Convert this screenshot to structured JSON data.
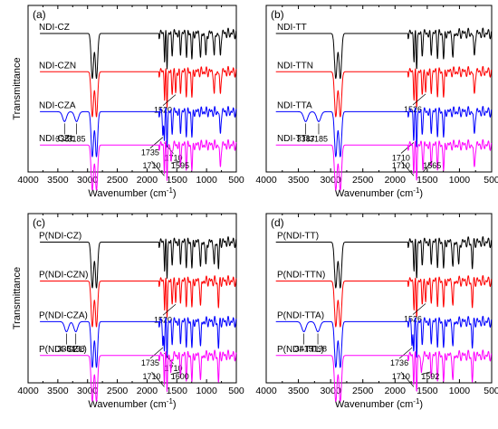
{
  "figure": {
    "chart_data": [
      {
        "type": "line",
        "panel": "(a)",
        "xlabel_prefix": "Wavenumber (cm",
        "xlabel_sup": "-1",
        "xlabel_suffix": ")",
        "ylabel": "Transmittance",
        "xlim": [
          4000,
          500
        ],
        "x_reversed": true,
        "xticks": [
          "4000",
          "3500",
          "3000",
          "2500",
          "2000",
          "1500",
          "1000",
          "500"
        ],
        "grid": false,
        "series": [
          {
            "name": "NDI-CZ",
            "color": "#000000",
            "peaks": [
              2920,
              2850,
              1705,
              1665,
              1580,
              1440,
              1335,
              1245,
              1100,
              1010,
              870,
              770
            ]
          },
          {
            "name": "NDI-CZN",
            "color": "#ff0000",
            "peaks": [
              2920,
              2850,
              1705,
              1665,
              1580,
              1520,
              1440,
              1340,
              1245,
              870,
              770
            ]
          },
          {
            "name": "NDI-CZA",
            "color": "#0000ff",
            "peaks": [
              3387,
              3185,
              2920,
              2850,
              1735,
              1710,
              1665,
              1580,
              1440,
              1340,
              1245,
              770
            ]
          },
          {
            "name": "NDI-CZL",
            "color": "#ff00ff",
            "peaks": [
              2920,
              2850,
              1710,
              1665,
              1595,
              1440,
              1340,
              1245,
              770
            ]
          }
        ],
        "annotations": [
          {
            "text": "1520",
            "series": "NDI-CZN",
            "x": 1520
          },
          {
            "text": "3387",
            "series": "NDI-CZA",
            "x": 3387
          },
          {
            "text": "3185",
            "series": "NDI-CZA",
            "x": 3185
          },
          {
            "text": "1735",
            "series": "NDI-CZA",
            "x": 1735
          },
          {
            "text": "1710",
            "series": "NDI-CZA",
            "x": 1710
          },
          {
            "text": "1710",
            "series": "NDI-CZL",
            "x": 1710
          },
          {
            "text": "1595",
            "series": "NDI-CZL",
            "x": 1595
          }
        ]
      },
      {
        "type": "line",
        "panel": "(b)",
        "xlabel_prefix": "Wavenumber (cm",
        "xlabel_sup": "-1",
        "xlabel_suffix": ")",
        "ylabel": "",
        "xlim": [
          4000,
          500
        ],
        "x_reversed": true,
        "xticks": [
          "4000",
          "3500",
          "3000",
          "2500",
          "2000",
          "1500",
          "1000",
          "500"
        ],
        "grid": false,
        "series": [
          {
            "name": "NDI-TT",
            "color": "#000000",
            "peaks": [
              2920,
              2850,
              1705,
              1665,
              1580,
              1440,
              1340,
              1245,
              1100,
              770
            ]
          },
          {
            "name": "NDI-TTN",
            "color": "#ff0000",
            "peaks": [
              2920,
              2850,
              1705,
              1665,
              1580,
              1526,
              1440,
              1340,
              1245,
              770
            ]
          },
          {
            "name": "NDI-TTA",
            "color": "#0000ff",
            "peaks": [
              3387,
              3185,
              2920,
              2850,
              1710,
              1665,
              1580,
              1440,
              1340,
              1245,
              770
            ]
          },
          {
            "name": "NDI-TTL",
            "color": "#ff00ff",
            "peaks": [
              2920,
              2850,
              1710,
              1665,
              1565,
              1440,
              1340,
              1245,
              770
            ]
          }
        ],
        "annotations": [
          {
            "text": "1526",
            "series": "NDI-TTN",
            "x": 1526
          },
          {
            "text": "3387",
            "series": "NDI-TTA",
            "x": 3387
          },
          {
            "text": "3185",
            "series": "NDI-TTA",
            "x": 3185
          },
          {
            "text": "1710",
            "series": "NDI-TTA",
            "x": 1710
          },
          {
            "text": "1710",
            "series": "NDI-TTL",
            "x": 1710
          },
          {
            "text": "1565",
            "series": "NDI-TTL",
            "x": 1565
          }
        ]
      },
      {
        "type": "line",
        "panel": "(c)",
        "xlabel_prefix": "Wavenumber (cm",
        "xlabel_sup": "-1",
        "xlabel_suffix": ")",
        "ylabel": "Transmittance",
        "xlim": [
          4000,
          500
        ],
        "x_reversed": true,
        "xticks": [
          "4000",
          "3500",
          "3000",
          "2500",
          "2000",
          "1500",
          "1000",
          "500"
        ],
        "grid": false,
        "series": [
          {
            "name": "P(NDI-CZ)",
            "color": "#000000",
            "peaks": [
              2920,
              2850,
              1705,
              1665,
              1580,
              1440,
              1340,
              1245,
              1100,
              1010,
              870,
              800
            ]
          },
          {
            "name": "P(NDI-CZN)",
            "color": "#ff0000",
            "peaks": [
              2920,
              2850,
              1705,
              1665,
              1580,
              1520,
              1440,
              1340,
              1245,
              1100,
              800
            ]
          },
          {
            "name": "P(NDI-CZA)",
            "color": "#0000ff",
            "peaks": [
              3354,
              3198,
              2920,
              2850,
              1735,
              1710,
              1665,
              1580,
              1440,
              1340,
              1245,
              1100,
              800
            ]
          },
          {
            "name": "P(NDI-CZL)",
            "color": "#ff00ff",
            "peaks": [
              2920,
              2850,
              1710,
              1665,
              1600,
              1440,
              1340,
              1245,
              1100,
              800
            ]
          }
        ],
        "annotations": [
          {
            "text": "1520",
            "series": "P(NDI-CZN)",
            "x": 1520
          },
          {
            "text": "3354",
            "series": "P(NDI-CZA)",
            "x": 3354
          },
          {
            "text": "3198",
            "series": "P(NDI-CZA)",
            "x": 3198
          },
          {
            "text": "1735",
            "series": "P(NDI-CZA)",
            "x": 1735
          },
          {
            "text": "1710",
            "series": "P(NDI-CZA)",
            "x": 1710
          },
          {
            "text": "1710",
            "series": "P(NDI-CZL)",
            "x": 1710
          },
          {
            "text": "1600",
            "series": "P(NDI-CZL)",
            "x": 1600
          }
        ]
      },
      {
        "type": "line",
        "panel": "(d)",
        "xlabel_prefix": "Wavenumber (cm",
        "xlabel_sup": "-1",
        "xlabel_suffix": ")",
        "ylabel": "",
        "xlim": [
          4000,
          500
        ],
        "x_reversed": true,
        "xticks": [
          "4000",
          "3500",
          "3000",
          "2500",
          "2000",
          "1500",
          "1000",
          "500"
        ],
        "grid": false,
        "series": [
          {
            "name": "P(NDI-TT)",
            "color": "#000000",
            "peaks": [
              2920,
              2850,
              1705,
              1665,
              1580,
              1440,
              1340,
              1245,
              1100,
              1010,
              800
            ]
          },
          {
            "name": "P(NDI-TTN)",
            "color": "#ff0000",
            "peaks": [
              2920,
              2850,
              1705,
              1665,
              1580,
              1526,
              1440,
              1340,
              1245,
              1100,
              800
            ]
          },
          {
            "name": "P(NDI-TTA)",
            "color": "#0000ff",
            "peaks": [
              3415,
              3198,
              2920,
              2850,
              1736,
              1710,
              1665,
              1580,
              1440,
              1340,
              1245,
              1100,
              800
            ]
          },
          {
            "name": "P(NDI-TTL)",
            "color": "#ff00ff",
            "peaks": [
              2920,
              2850,
              1710,
              1665,
              1592,
              1440,
              1340,
              1245,
              1100,
              800
            ]
          }
        ],
        "annotations": [
          {
            "text": "1526",
            "series": "P(NDI-TTN)",
            "x": 1526
          },
          {
            "text": "3415",
            "series": "P(NDI-TTA)",
            "x": 3415
          },
          {
            "text": "3198",
            "series": "P(NDI-TTA)",
            "x": 3198
          },
          {
            "text": "1736",
            "series": "P(NDI-TTA)",
            "x": 1736
          },
          {
            "text": "1710",
            "series": "P(NDI-TTL)",
            "x": 1710
          },
          {
            "text": "1592",
            "series": "P(NDI-TTL)",
            "x": 1592
          }
        ]
      }
    ]
  }
}
